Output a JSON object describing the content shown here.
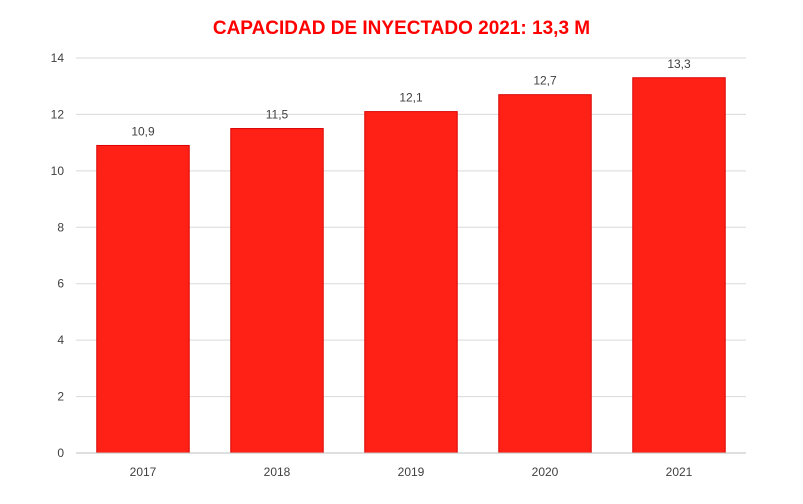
{
  "chart_data": {
    "type": "bar",
    "title": "CAPACIDAD DE INYECTADO 2021: 13,3 M",
    "categories": [
      "2017",
      "2018",
      "2019",
      "2020",
      "2021"
    ],
    "values": [
      10.9,
      11.5,
      12.1,
      12.7,
      13.3
    ],
    "value_labels": [
      "10,9",
      "11,5",
      "12,1",
      "12,7",
      "13,3"
    ],
    "y_ticks": [
      "0",
      "2",
      "4",
      "6",
      "8",
      "10",
      "12",
      "14"
    ],
    "ylim": [
      0,
      14
    ],
    "grid": true,
    "legend": "none",
    "colors": {
      "bar": "#ff2116",
      "bar_edge": "#d90000",
      "title": "#ff0000",
      "grid": "#d9d9d9",
      "axis": "#bfbfbf",
      "text": "#404040"
    }
  }
}
